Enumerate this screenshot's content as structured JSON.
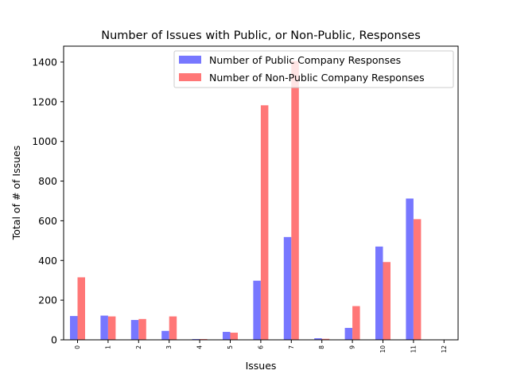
{
  "chart_data": {
    "type": "bar",
    "title": "Number of Issues with Public, or Non-Public, Responses",
    "xlabel": "Issues",
    "ylabel": "Total of # of Issues",
    "categories": [
      "0",
      "1",
      "2",
      "3",
      "4",
      "5",
      "6",
      "7",
      "8",
      "9",
      "10",
      "11",
      "12"
    ],
    "ylim": [
      0,
      1480
    ],
    "yticks": [
      0,
      200,
      400,
      600,
      800,
      1000,
      1200,
      1400
    ],
    "legend_position": "top-right",
    "grid": false,
    "series": [
      {
        "name": "Number of Public Company Responses",
        "color": "#7777ff",
        "values": [
          120,
          122,
          100,
          45,
          4,
          40,
          298,
          518,
          8,
          60,
          470,
          712,
          0
        ]
      },
      {
        "name": "Number of Non-Public Company Responses",
        "color": "#ff7777",
        "values": [
          315,
          118,
          105,
          118,
          4,
          36,
          1182,
          1405,
          5,
          170,
          392,
          608,
          0
        ]
      }
    ]
  }
}
